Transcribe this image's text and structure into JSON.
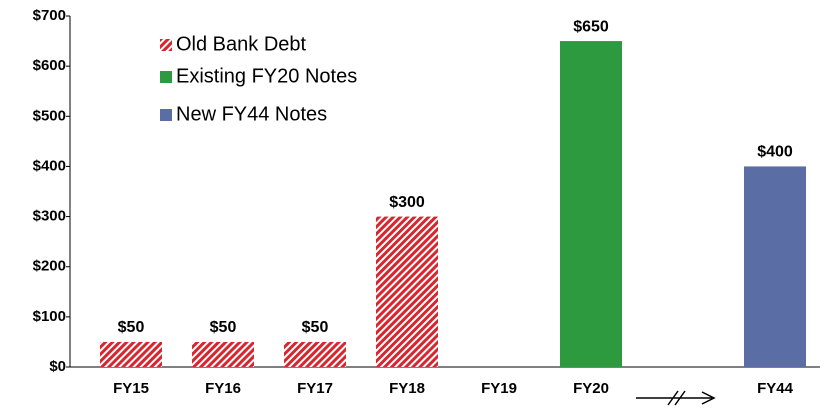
{
  "chart_data": {
    "type": "bar",
    "categories": [
      "FY15",
      "FY16",
      "FY17",
      "FY18",
      "FY19",
      "FY20",
      null,
      "FY44"
    ],
    "series": [
      {
        "name": "Old Bank Debt",
        "color": "#d7262e",
        "pattern": "hatched",
        "values": [
          50,
          50,
          50,
          300,
          null,
          null,
          null,
          null
        ],
        "value_labels": [
          "$50",
          "$50",
          "$50",
          "$300",
          null,
          null,
          null,
          null
        ]
      },
      {
        "name": "Existing FY20 Notes",
        "color": "#2e9a3f",
        "values": [
          null,
          null,
          null,
          null,
          null,
          650,
          null,
          null
        ],
        "value_labels": [
          null,
          null,
          null,
          null,
          null,
          "$650",
          null,
          null
        ]
      },
      {
        "name": "New FY44 Notes",
        "color": "#5a6ea5",
        "values": [
          null,
          null,
          null,
          null,
          null,
          null,
          null,
          400
        ],
        "value_labels": [
          null,
          null,
          null,
          null,
          null,
          null,
          null,
          "$400"
        ]
      }
    ],
    "ylim": [
      0,
      700
    ],
    "yticks": [
      {
        "value": 0,
        "label": "$0"
      },
      {
        "value": 100,
        "label": "$100"
      },
      {
        "value": 200,
        "label": "$200"
      },
      {
        "value": 300,
        "label": "$300"
      },
      {
        "value": 400,
        "label": "$400"
      },
      {
        "value": 500,
        "label": "$500"
      },
      {
        "value": 600,
        "label": "$600"
      },
      {
        "value": 700,
        "label": "$700"
      }
    ],
    "legend": "upper left"
  }
}
